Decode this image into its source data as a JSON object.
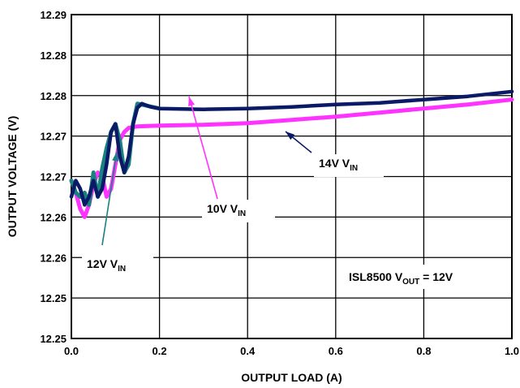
{
  "chart_data": {
    "type": "line",
    "title": "",
    "xlabel": "OUTPUT LOAD (A)",
    "ylabel": "OUTPUT VOLTAGE (V)",
    "xlim": [
      0,
      1.0
    ],
    "ylim": [
      12.25,
      12.29
    ],
    "grid": true,
    "x_ticks": [
      "0.0",
      "0.2",
      "0.4",
      "0.6",
      "0.8",
      "1.0"
    ],
    "y_ticks": [
      "12.25",
      "12.25",
      "12.26",
      "12.26",
      "12.27",
      "12.27",
      "12.28",
      "12.28",
      "12.29"
    ],
    "annotation_box": {
      "text_main": "ISL8500 V",
      "text_sub": "OUT",
      "text_tail": " = 12V"
    },
    "series": [
      {
        "name": "10V V",
        "label_sub": "IN",
        "color": "#ff33ff",
        "x": [
          0.0,
          0.01,
          0.02,
          0.03,
          0.04,
          0.05,
          0.06,
          0.07,
          0.08,
          0.09,
          0.1,
          0.11,
          0.12,
          0.13,
          0.15,
          0.2,
          0.3,
          0.4,
          0.5,
          0.6,
          0.7,
          0.8,
          0.9,
          1.0
        ],
        "y": [
          12.2695,
          12.268,
          12.266,
          12.265,
          12.2665,
          12.269,
          12.2705,
          12.27,
          12.2675,
          12.2685,
          12.2715,
          12.2745,
          12.2755,
          12.276,
          12.2762,
          12.2763,
          12.2764,
          12.2766,
          12.277,
          12.2774,
          12.2779,
          12.2784,
          12.2789,
          12.2795
        ]
      },
      {
        "name": "12V V",
        "label_sub": "IN",
        "color": "#1a8080",
        "x": [
          0.0,
          0.01,
          0.02,
          0.03,
          0.04,
          0.05,
          0.06,
          0.07,
          0.08,
          0.09,
          0.1,
          0.11,
          0.12,
          0.13,
          0.14,
          0.15,
          0.2
        ],
        "y": [
          12.2695,
          12.268,
          12.2675,
          12.268,
          12.2665,
          12.2705,
          12.2675,
          12.271,
          12.2735,
          12.2755,
          12.2765,
          12.2745,
          12.2705,
          12.2715,
          12.2765,
          12.279,
          12.2784
        ]
      },
      {
        "name": "14V V",
        "label_sub": "IN",
        "color": "#0a1a66",
        "x": [
          0.0,
          0.01,
          0.02,
          0.03,
          0.04,
          0.05,
          0.06,
          0.07,
          0.08,
          0.09,
          0.1,
          0.11,
          0.12,
          0.13,
          0.14,
          0.15,
          0.16,
          0.18,
          0.2,
          0.3,
          0.4,
          0.5,
          0.6,
          0.7,
          0.8,
          0.9,
          1.0
        ],
        "y": [
          12.2675,
          12.2695,
          12.2685,
          12.2665,
          12.2675,
          12.2695,
          12.2675,
          12.2685,
          12.2715,
          12.2755,
          12.2765,
          12.2725,
          12.2705,
          12.2725,
          12.2765,
          12.2785,
          12.279,
          12.2786,
          12.2784,
          12.2783,
          12.2784,
          12.2786,
          12.2789,
          12.2791,
          12.2795,
          12.2799,
          12.2805
        ]
      }
    ]
  }
}
